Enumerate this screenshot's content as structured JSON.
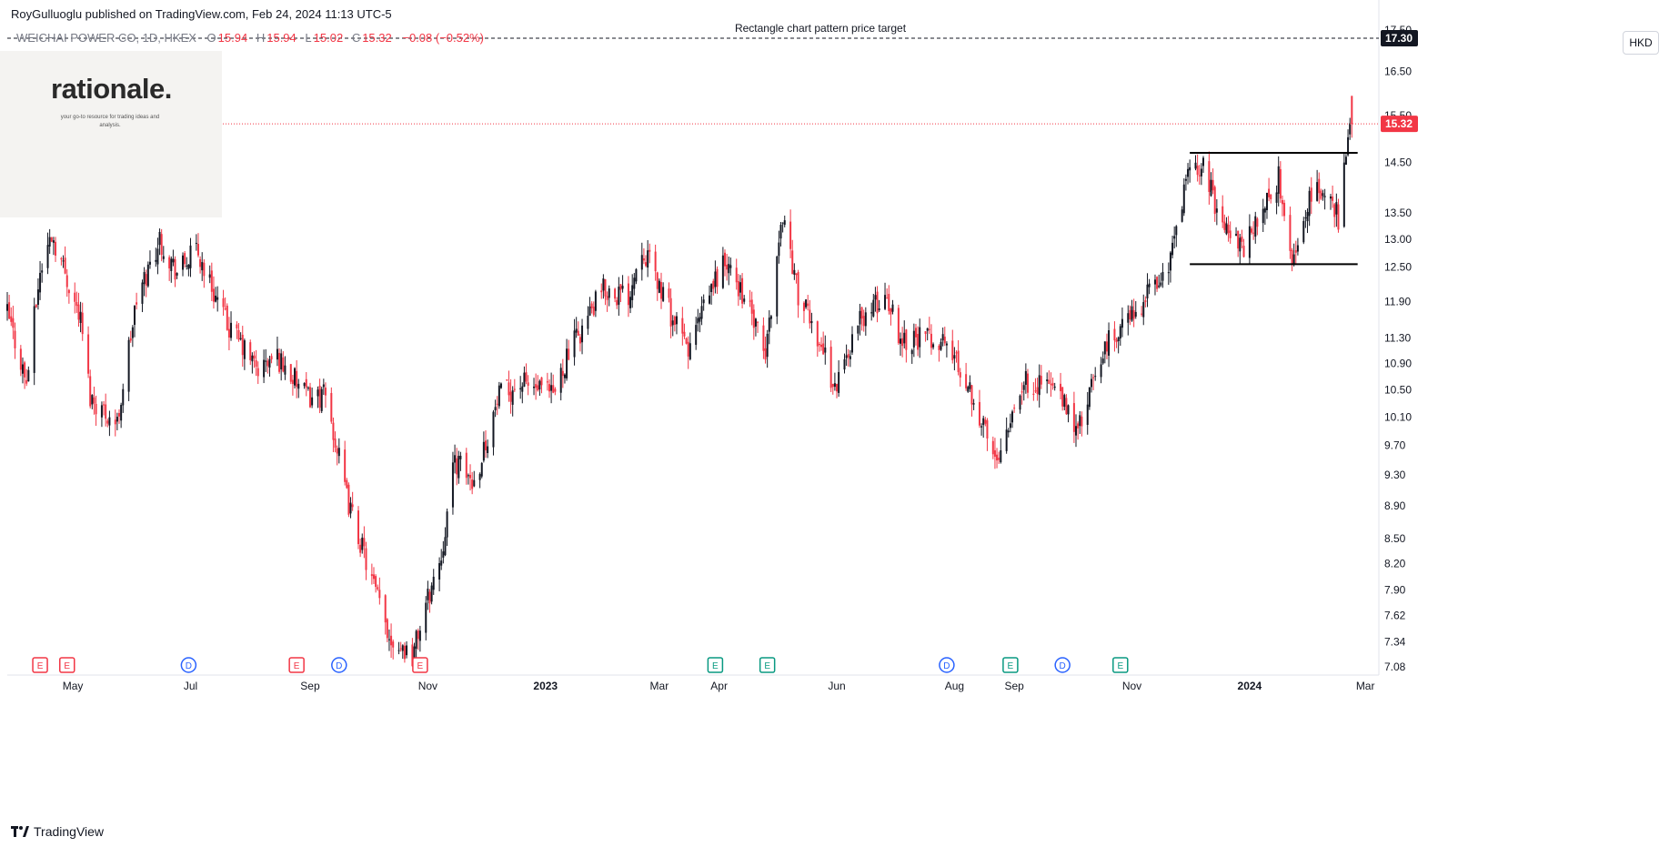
{
  "header": {
    "publisher_line": "RoyGulluoglu published on TradingView.com, Feb 24, 2024 11:13 UTC-5"
  },
  "legend": {
    "symbol": "WEICHAI POWER CO, 1D, HKEX",
    "open_label": "O",
    "open": "15.94",
    "high_label": "H",
    "high": "15.94",
    "low_label": "L",
    "low": "15.02",
    "close_label": "C",
    "close": "15.32",
    "change": "−0.08 (−0.52%)"
  },
  "watermark": {
    "title": "rationale.",
    "subtitle": "your go-to resource for trading ideas and analysis."
  },
  "currency": "HKD",
  "footer": {
    "brand": "TradingView"
  },
  "colors": {
    "up": "#131722",
    "down": "#f23645",
    "earnings": "#f23645",
    "earnings_alt": "#089981",
    "dividend": "#2962ff"
  },
  "chart_data": {
    "type": "candlestick",
    "symbol": "WEICHAI POWER CO",
    "interval": "1D",
    "exchange": "HKEX",
    "price_axis": {
      "scale": "log",
      "ylim": [
        7.0,
        17.8
      ],
      "ticks": [
        "17.50",
        "16.50",
        "15.50",
        "14.50",
        "13.50",
        "13.00",
        "12.50",
        "11.90",
        "11.30",
        "10.90",
        "10.50",
        "10.10",
        "9.70",
        "9.30",
        "8.90",
        "8.50",
        "8.20",
        "7.90",
        "7.62",
        "7.34",
        "7.08"
      ]
    },
    "time_axis": {
      "labels": [
        {
          "t": "2022-05-01",
          "label": "May",
          "bold": false
        },
        {
          "t": "2022-07-01",
          "label": "Jul",
          "bold": false
        },
        {
          "t": "2022-09-01",
          "label": "Sep",
          "bold": false
        },
        {
          "t": "2022-11-01",
          "label": "Nov",
          "bold": false
        },
        {
          "t": "2023-01-01",
          "label": "2023",
          "bold": true
        },
        {
          "t": "2023-03-01",
          "label": "Mar",
          "bold": false
        },
        {
          "t": "2023-04-01",
          "label": "Apr",
          "bold": false
        },
        {
          "t": "2023-06-01",
          "label": "Jun",
          "bold": false
        },
        {
          "t": "2023-08-01",
          "label": "Aug",
          "bold": false
        },
        {
          "t": "2023-09-01",
          "label": "Sep",
          "bold": false
        },
        {
          "t": "2023-11-01",
          "label": "Nov",
          "bold": false
        },
        {
          "t": "2024-01-01",
          "label": "2024",
          "bold": true
        },
        {
          "t": "2024-03-01",
          "label": "Mar",
          "bold": false
        }
      ],
      "xlim": [
        "2022-03-28",
        "2024-03-08"
      ]
    },
    "ohlc_anchors": [
      {
        "t": "2022-03-28",
        "c": 11.7
      },
      {
        "t": "2022-04-07",
        "c": 10.6
      },
      {
        "t": "2022-04-14",
        "c": 12.4
      },
      {
        "t": "2022-04-20",
        "c": 13.1
      },
      {
        "t": "2022-05-05",
        "c": 11.6
      },
      {
        "t": "2022-05-10",
        "c": 10.4
      },
      {
        "t": "2022-05-24",
        "c": 10.0
      },
      {
        "t": "2022-06-03",
        "c": 11.9
      },
      {
        "t": "2022-06-15",
        "c": 13.0
      },
      {
        "t": "2022-06-24",
        "c": 12.4
      },
      {
        "t": "2022-07-04",
        "c": 12.8
      },
      {
        "t": "2022-07-20",
        "c": 11.5
      },
      {
        "t": "2022-08-05",
        "c": 10.8
      },
      {
        "t": "2022-08-15",
        "c": 11.0
      },
      {
        "t": "2022-08-30",
        "c": 10.4
      },
      {
        "t": "2022-09-09",
        "c": 10.4
      },
      {
        "t": "2022-09-20",
        "c": 9.0
      },
      {
        "t": "2022-10-03",
        "c": 8.0
      },
      {
        "t": "2022-10-12",
        "c": 7.4
      },
      {
        "t": "2022-10-24",
        "c": 7.2
      },
      {
        "t": "2022-11-01",
        "c": 7.8
      },
      {
        "t": "2022-11-08",
        "c": 8.3
      },
      {
        "t": "2022-11-15",
        "c": 9.5
      },
      {
        "t": "2022-11-25",
        "c": 9.2
      },
      {
        "t": "2022-12-08",
        "c": 10.4
      },
      {
        "t": "2022-12-20",
        "c": 10.6
      },
      {
        "t": "2023-01-05",
        "c": 10.4
      },
      {
        "t": "2023-01-12",
        "c": 11.0
      },
      {
        "t": "2023-01-31",
        "c": 12.1
      },
      {
        "t": "2023-02-13",
        "c": 12.0
      },
      {
        "t": "2023-02-20",
        "c": 12.9
      },
      {
        "t": "2023-03-08",
        "c": 11.6
      },
      {
        "t": "2023-03-16",
        "c": 11.1
      },
      {
        "t": "2023-04-03",
        "c": 12.6
      },
      {
        "t": "2023-04-14",
        "c": 12.0
      },
      {
        "t": "2023-04-25",
        "c": 11.0
      },
      {
        "t": "2023-05-04",
        "c": 13.5
      },
      {
        "t": "2023-05-12",
        "c": 12.0
      },
      {
        "t": "2023-05-24",
        "c": 11.2
      },
      {
        "t": "2023-05-31",
        "c": 10.5
      },
      {
        "t": "2023-06-13",
        "c": 11.6
      },
      {
        "t": "2023-06-27",
        "c": 12.0
      },
      {
        "t": "2023-07-04",
        "c": 11.3
      },
      {
        "t": "2023-07-20",
        "c": 11.3
      },
      {
        "t": "2023-07-28",
        "c": 11.2
      },
      {
        "t": "2023-08-08",
        "c": 10.6
      },
      {
        "t": "2023-08-22",
        "c": 9.5
      },
      {
        "t": "2023-09-05",
        "c": 10.6
      },
      {
        "t": "2023-09-20",
        "c": 10.6
      },
      {
        "t": "2023-10-04",
        "c": 9.9
      },
      {
        "t": "2023-10-12",
        "c": 10.6
      },
      {
        "t": "2023-10-19",
        "c": 11.2
      },
      {
        "t": "2023-11-02",
        "c": 11.7
      },
      {
        "t": "2023-11-20",
        "c": 12.5
      },
      {
        "t": "2023-11-30",
        "c": 14.2
      },
      {
        "t": "2023-12-07",
        "c": 14.5
      },
      {
        "t": "2023-12-15",
        "c": 13.6
      },
      {
        "t": "2023-12-28",
        "c": 12.8
      },
      {
        "t": "2024-01-10",
        "c": 13.7
      },
      {
        "t": "2024-01-16",
        "c": 14.2
      },
      {
        "t": "2024-01-23",
        "c": 12.5
      },
      {
        "t": "2024-01-30",
        "c": 13.6
      },
      {
        "t": "2024-02-08",
        "c": 14.0
      },
      {
        "t": "2024-02-16",
        "c": 13.4
      },
      {
        "t": "2024-02-20",
        "c": 14.6
      },
      {
        "t": "2024-02-23",
        "c": 15.32
      }
    ],
    "last_bar": {
      "t": "2024-02-23",
      "o": 15.94,
      "h": 15.94,
      "l": 15.02,
      "c": 15.32
    },
    "rectangle_pattern": {
      "upper": 14.7,
      "lower": 12.55,
      "start": "2023-12-01",
      "end": "2024-02-26"
    },
    "price_target": {
      "label": "Rectangle chart pattern price target",
      "value": "17.30"
    },
    "last_price_label": "15.32",
    "events": [
      {
        "t": "2022-04-14",
        "type": "E",
        "marker": "earnings"
      },
      {
        "t": "2022-04-28",
        "type": "E",
        "marker": "earnings"
      },
      {
        "t": "2022-06-30",
        "type": "D",
        "marker": "dividend"
      },
      {
        "t": "2022-08-25",
        "type": "E",
        "marker": "earnings"
      },
      {
        "t": "2022-09-16",
        "type": "D",
        "marker": "dividend"
      },
      {
        "t": "2022-10-28",
        "type": "E",
        "marker": "earnings"
      },
      {
        "t": "2023-03-30",
        "type": "E",
        "marker": "earnings_alt"
      },
      {
        "t": "2023-04-26",
        "type": "E",
        "marker": "earnings_alt"
      },
      {
        "t": "2023-07-28",
        "type": "D",
        "marker": "dividend"
      },
      {
        "t": "2023-08-30",
        "type": "E",
        "marker": "earnings_alt"
      },
      {
        "t": "2023-09-26",
        "type": "D",
        "marker": "dividend"
      },
      {
        "t": "2023-10-26",
        "type": "E",
        "marker": "earnings_alt"
      }
    ]
  }
}
